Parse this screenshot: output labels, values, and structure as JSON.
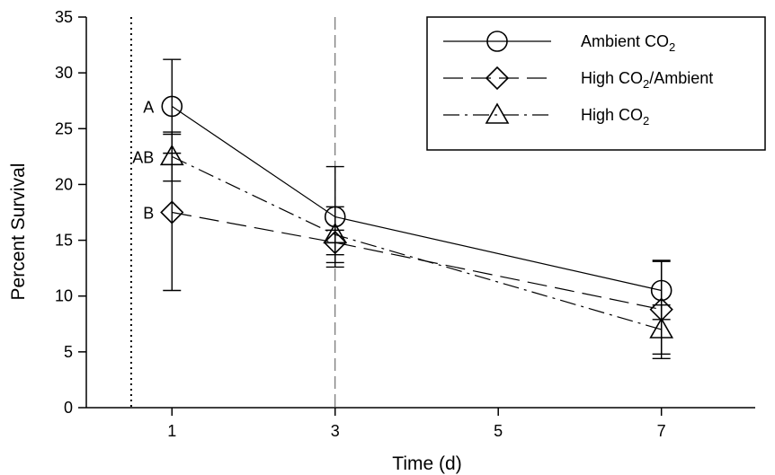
{
  "chart_data": {
    "type": "line",
    "title": "",
    "xlabel": "Time (d)",
    "ylabel": "Percent Survival",
    "x": [
      1,
      3,
      7
    ],
    "x_ticks": [
      "1",
      "3",
      "5",
      "7"
    ],
    "y_ticks": [
      "0",
      "5",
      "10",
      "15",
      "20",
      "25",
      "30",
      "35"
    ],
    "xlim": [
      -0.05,
      8.15
    ],
    "ylim": [
      0,
      35
    ],
    "grid": false,
    "legend_position": "top-right",
    "series": [
      {
        "name": "Ambient CO2",
        "name_main": "Ambient CO",
        "name_sub": "2",
        "name_tail": "",
        "marker": "circle",
        "line_style": "solid",
        "values": [
          27.0,
          17.1,
          10.5
        ],
        "error": [
          4.2,
          4.5,
          2.6
        ]
      },
      {
        "name": "High CO2/Ambient",
        "name_main": "High CO",
        "name_sub": "2",
        "name_tail": "/Ambient",
        "marker": "diamond",
        "line_style": "dashed",
        "values": [
          17.5,
          14.8,
          8.8
        ],
        "error": [
          7.0,
          1.1,
          4.4
        ]
      },
      {
        "name": "High CO2",
        "name_main": "High CO",
        "name_sub": "2",
        "name_tail": "",
        "marker": "triangle",
        "line_style": "dashdot",
        "values": [
          22.5,
          15.5,
          7.0
        ],
        "error": [
          2.2,
          2.5,
          2.2
        ]
      }
    ],
    "reference_lines": [
      {
        "x": 0.5,
        "style": "dotted"
      },
      {
        "x": 3,
        "style": "dashed"
      }
    ],
    "annotations": [
      {
        "text": "A",
        "series": 0,
        "x": 1
      },
      {
        "text": "AB",
        "series": 2,
        "x": 1
      },
      {
        "text": "B",
        "series": 1,
        "x": 1
      }
    ]
  }
}
